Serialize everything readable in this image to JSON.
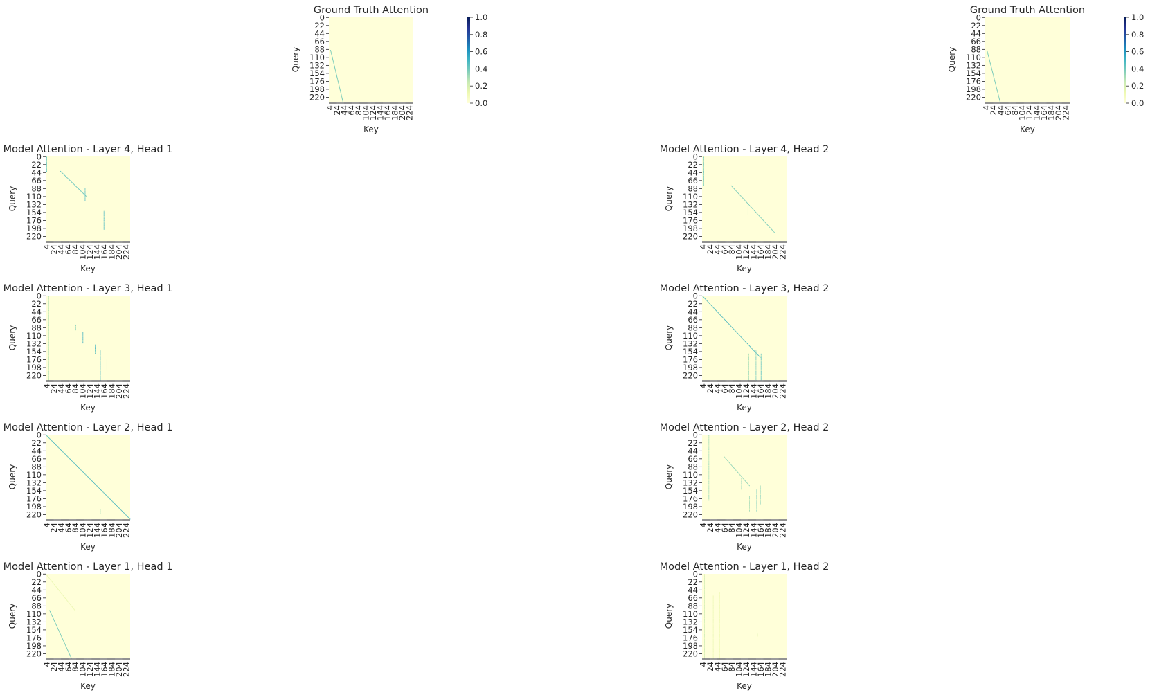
{
  "chart_data": [
    {
      "type": "heatmap",
      "title": "Ground Truth Attention",
      "xlabel": "Key",
      "ylabel": "Query",
      "y_ticks": [
        0,
        22,
        44,
        66,
        88,
        110,
        132,
        154,
        176,
        198,
        220
      ],
      "x_ticks": [
        4,
        24,
        44,
        64,
        84,
        104,
        124,
        144,
        164,
        184,
        204,
        224
      ],
      "colorbar": {
        "ticks": [
          "0.0",
          "0.2",
          "0.4",
          "0.6",
          "0.8",
          "1.0"
        ],
        "range": [
          0,
          1
        ],
        "colormap": "YlGnBu"
      },
      "size": 233,
      "pattern": [
        {
          "kind": "diag",
          "from_query": 90,
          "to_query": 232,
          "key_start": 4,
          "key_end": 38,
          "strength": 0.45
        }
      ]
    },
    {
      "type": "heatmap",
      "title": "Ground Truth Attention",
      "xlabel": "Key",
      "ylabel": "Query",
      "y_ticks": [
        0,
        22,
        44,
        66,
        88,
        110,
        132,
        154,
        176,
        198,
        220
      ],
      "x_ticks": [
        4,
        24,
        44,
        64,
        84,
        104,
        124,
        144,
        164,
        184,
        204,
        224
      ],
      "colorbar": {
        "ticks": [
          "0.0",
          "0.2",
          "0.4",
          "0.6",
          "0.8",
          "1.0"
        ],
        "range": [
          0,
          1
        ],
        "colormap": "YlGnBu"
      },
      "size": 233,
      "pattern": [
        {
          "kind": "diag",
          "from_query": 90,
          "to_query": 232,
          "key_start": 4,
          "key_end": 40,
          "strength": 0.45
        }
      ]
    },
    {
      "type": "heatmap",
      "title": "Model Attention - Layer 4, Head 1",
      "xlabel": "Key",
      "ylabel": "Query",
      "y_ticks": [
        0,
        22,
        44,
        66,
        88,
        110,
        132,
        154,
        176,
        198,
        220
      ],
      "x_ticks": [
        4,
        24,
        44,
        64,
        84,
        104,
        124,
        144,
        164,
        184,
        204,
        224
      ],
      "size": 233,
      "pattern": [
        {
          "kind": "col",
          "key": 2,
          "from_query": 0,
          "to_query": 40,
          "strength": 0.5
        },
        {
          "kind": "diag",
          "from_query": 40,
          "to_query": 110,
          "key_start": 40,
          "key_end": 112,
          "strength": 0.5
        },
        {
          "kind": "col",
          "key": 108,
          "from_query": 88,
          "to_query": 120,
          "strength": 0.55
        },
        {
          "kind": "col",
          "key": 130,
          "from_query": 125,
          "to_query": 200,
          "strength": 0.4
        },
        {
          "kind": "col",
          "key": 160,
          "from_query": 150,
          "to_query": 200,
          "strength": 0.55
        }
      ]
    },
    {
      "type": "heatmap",
      "title": "Model Attention - Layer 4, Head 2",
      "xlabel": "Key",
      "ylabel": "Query",
      "y_ticks": [
        0,
        22,
        44,
        66,
        88,
        110,
        132,
        154,
        176,
        198,
        220
      ],
      "x_ticks": [
        4,
        24,
        44,
        64,
        84,
        104,
        124,
        144,
        164,
        184,
        204,
        224
      ],
      "size": 233,
      "pattern": [
        {
          "kind": "col",
          "key": 4,
          "from_query": 0,
          "to_query": 80,
          "strength": 0.45
        },
        {
          "kind": "diag",
          "from_query": 80,
          "to_query": 210,
          "key_start": 80,
          "key_end": 200,
          "strength": 0.45
        },
        {
          "kind": "col",
          "key": 126,
          "from_query": 130,
          "to_query": 160,
          "strength": 0.4
        }
      ]
    },
    {
      "type": "heatmap",
      "title": "Model Attention - Layer 3, Head 1",
      "xlabel": "Key",
      "ylabel": "Query",
      "y_ticks": [
        0,
        22,
        44,
        66,
        88,
        110,
        132,
        154,
        176,
        198,
        220
      ],
      "x_ticks": [
        4,
        24,
        44,
        64,
        84,
        104,
        124,
        144,
        164,
        184,
        204,
        224
      ],
      "size": 233,
      "pattern": [
        {
          "kind": "col",
          "key": 8,
          "from_query": 0,
          "to_query": 232,
          "strength": 0.3
        },
        {
          "kind": "col",
          "key": 82,
          "from_query": 80,
          "to_query": 95,
          "strength": 0.4
        },
        {
          "kind": "col",
          "key": 102,
          "from_query": 100,
          "to_query": 130,
          "strength": 0.6
        },
        {
          "kind": "col",
          "key": 136,
          "from_query": 135,
          "to_query": 160,
          "strength": 0.55
        },
        {
          "kind": "col",
          "key": 150,
          "from_query": 150,
          "to_query": 232,
          "strength": 0.55
        },
        {
          "kind": "col",
          "key": 168,
          "from_query": 175,
          "to_query": 205,
          "strength": 0.35
        }
      ]
    },
    {
      "type": "heatmap",
      "title": "Model Attention - Layer 3, Head 2",
      "xlabel": "Key",
      "ylabel": "Query",
      "y_ticks": [
        0,
        22,
        44,
        66,
        88,
        110,
        132,
        154,
        176,
        198,
        220
      ],
      "x_ticks": [
        4,
        24,
        44,
        64,
        84,
        104,
        124,
        144,
        164,
        184,
        204,
        224
      ],
      "size": 233,
      "pattern": [
        {
          "kind": "diag",
          "from_query": 0,
          "to_query": 170,
          "key_start": 0,
          "key_end": 160,
          "strength": 0.55
        },
        {
          "kind": "col",
          "key": 128,
          "from_query": 160,
          "to_query": 232,
          "strength": 0.35
        },
        {
          "kind": "col",
          "key": 148,
          "from_query": 150,
          "to_query": 232,
          "strength": 0.45
        },
        {
          "kind": "col",
          "key": 162,
          "from_query": 160,
          "to_query": 232,
          "strength": 0.5
        }
      ]
    },
    {
      "type": "heatmap",
      "title": "Model Attention - Layer 2, Head 1",
      "xlabel": "Key",
      "ylabel": "Query",
      "y_ticks": [
        0,
        22,
        44,
        66,
        88,
        110,
        132,
        154,
        176,
        198,
        220
      ],
      "x_ticks": [
        4,
        24,
        44,
        64,
        84,
        104,
        124,
        144,
        164,
        184,
        204,
        224
      ],
      "size": 233,
      "pattern": [
        {
          "kind": "diag",
          "from_query": 0,
          "to_query": 232,
          "key_start": 0,
          "key_end": 232,
          "strength": 0.55
        },
        {
          "kind": "col",
          "key": 150,
          "from_query": 205,
          "to_query": 218,
          "strength": 0.35
        }
      ]
    },
    {
      "type": "heatmap",
      "title": "Model Attention - Layer 2, Head 2",
      "xlabel": "Key",
      "ylabel": "Query",
      "y_ticks": [
        0,
        22,
        44,
        66,
        88,
        110,
        132,
        154,
        176,
        198,
        220
      ],
      "x_ticks": [
        4,
        24,
        44,
        64,
        84,
        104,
        124,
        144,
        164,
        184,
        204,
        224
      ],
      "size": 233,
      "pattern": [
        {
          "kind": "col",
          "key": 18,
          "from_query": 0,
          "to_query": 180,
          "strength": 0.35
        },
        {
          "kind": "diag",
          "from_query": 60,
          "to_query": 140,
          "key_start": 60,
          "key_end": 130,
          "strength": 0.4
        },
        {
          "kind": "col",
          "key": 108,
          "from_query": 120,
          "to_query": 150,
          "strength": 0.4
        },
        {
          "kind": "col",
          "key": 130,
          "from_query": 170,
          "to_query": 210,
          "strength": 0.35
        },
        {
          "kind": "col",
          "key": 150,
          "from_query": 150,
          "to_query": 210,
          "strength": 0.45
        },
        {
          "kind": "col",
          "key": 160,
          "from_query": 140,
          "to_query": 190,
          "strength": 0.4
        }
      ]
    },
    {
      "type": "heatmap",
      "title": "Model Attention - Layer 1, Head 1",
      "xlabel": "Key",
      "ylabel": "Query",
      "y_ticks": [
        0,
        22,
        44,
        66,
        88,
        110,
        132,
        154,
        176,
        198,
        220
      ],
      "x_ticks": [
        4,
        24,
        44,
        64,
        84,
        104,
        124,
        144,
        164,
        184,
        204,
        224
      ],
      "size": 233,
      "pattern": [
        {
          "kind": "diag",
          "from_query": 0,
          "to_query": 100,
          "key_start": 0,
          "key_end": 80,
          "strength": 0.15
        },
        {
          "kind": "diag",
          "from_query": 100,
          "to_query": 232,
          "key_start": 10,
          "key_end": 70,
          "strength": 0.45
        }
      ]
    },
    {
      "type": "heatmap",
      "title": "Model Attention - Layer 1, Head 2",
      "xlabel": "Key",
      "ylabel": "Query",
      "y_ticks": [
        0,
        22,
        44,
        66,
        88,
        110,
        132,
        154,
        176,
        198,
        220
      ],
      "x_ticks": [
        4,
        24,
        44,
        64,
        84,
        104,
        124,
        144,
        164,
        184,
        204,
        224
      ],
      "size": 233,
      "pattern": [
        {
          "kind": "col",
          "key": 6,
          "from_query": 0,
          "to_query": 232,
          "strength": 0.25
        },
        {
          "kind": "col",
          "key": 30,
          "from_query": 60,
          "to_query": 232,
          "strength": 0.15
        },
        {
          "kind": "col",
          "key": 48,
          "from_query": 50,
          "to_query": 232,
          "strength": 0.12
        },
        {
          "kind": "col",
          "key": 152,
          "from_query": 165,
          "to_query": 172,
          "strength": 0.2
        }
      ]
    }
  ]
}
